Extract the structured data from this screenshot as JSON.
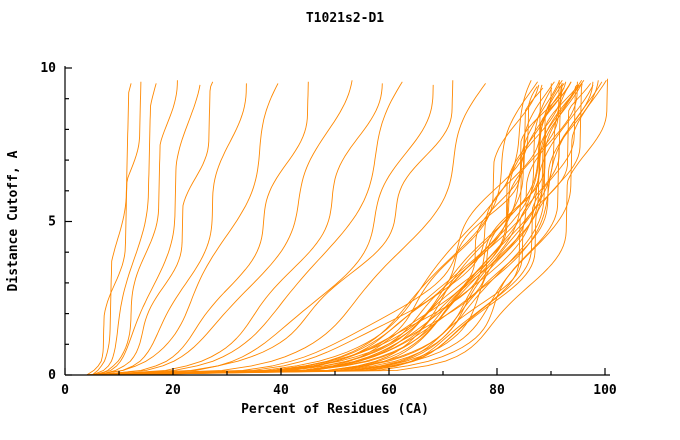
{
  "title": "T1021s2-D1",
  "colors": {
    "curve": "#ff8800",
    "axis": "#000000",
    "background": "#ffffff",
    "text": "#000000"
  },
  "chart_data": {
    "type": "line",
    "title": "T1021s2-D1",
    "xlabel": "Percent of Residues (CA)",
    "ylabel": "Distance Cutoff, A",
    "xlim": [
      0,
      100
    ],
    "ylim": [
      0,
      10
    ],
    "x_ticks": [
      0,
      20,
      40,
      60,
      80,
      100
    ],
    "x_minor_step": 10,
    "y_ticks": [
      0,
      5,
      10
    ],
    "y_minor_step": 1,
    "grid": false,
    "legend": false,
    "curve_color": "#ff8800",
    "curve_params_legend": [
      "x_at_cutoff0",
      "x_at_top",
      "shape_exponent",
      "top_cutoff",
      "wiggle_freq",
      "wiggle_phase"
    ],
    "curves": [
      [
        5,
        12,
        0.5,
        9.5,
        1.3,
        0.5
      ],
      [
        4,
        14,
        0.55,
        9.55,
        1.7,
        1.2
      ],
      [
        5,
        17,
        0.45,
        9.5,
        1.1,
        2.0
      ],
      [
        6,
        20,
        0.5,
        9.6,
        1.5,
        0.3
      ],
      [
        5,
        24,
        0.42,
        9.45,
        1.2,
        2.6
      ],
      [
        6,
        28,
        0.48,
        9.55,
        1.8,
        1.0
      ],
      [
        5,
        33,
        0.4,
        9.5,
        1.4,
        1.9
      ],
      [
        5,
        40,
        0.45,
        9.5,
        1.2,
        0.7
      ],
      [
        6,
        46,
        0.4,
        9.55,
        1.6,
        1.5
      ],
      [
        5,
        52,
        0.38,
        9.6,
        1.3,
        2.2
      ],
      [
        6,
        58,
        0.35,
        9.5,
        1.5,
        0.9
      ],
      [
        5,
        63,
        0.33,
        9.55,
        1.1,
        1.7
      ],
      [
        6,
        68,
        0.3,
        9.45,
        1.4,
        2.4
      ],
      [
        5,
        73,
        0.32,
        9.6,
        1.7,
        0.4
      ],
      [
        6,
        78,
        0.28,
        9.5,
        1.2,
        1.1
      ],
      [
        4,
        86,
        0.2,
        9.45,
        1.5,
        0.2
      ],
      [
        5,
        87,
        0.22,
        9.55,
        1.2,
        1.4
      ],
      [
        4,
        88,
        0.18,
        9.35,
        1.8,
        2.3
      ],
      [
        6,
        88,
        0.24,
        9.6,
        1.1,
        0.8
      ],
      [
        5,
        89,
        0.16,
        9.5,
        1.4,
        1.9
      ],
      [
        4,
        89,
        0.26,
        9.4,
        1.6,
        2.8
      ],
      [
        5,
        90,
        0.19,
        9.55,
        1.3,
        0.5
      ],
      [
        6,
        90,
        0.22,
        9.45,
        1.7,
        1.6
      ],
      [
        4,
        90,
        0.15,
        9.6,
        1.2,
        2.1
      ],
      [
        5,
        91,
        0.21,
        9.5,
        1.5,
        0.9
      ],
      [
        6,
        91,
        0.17,
        9.35,
        1.1,
        1.8
      ],
      [
        4,
        91,
        0.25,
        9.55,
        1.9,
        2.6
      ],
      [
        5,
        92,
        0.14,
        9.5,
        1.3,
        0.3
      ],
      [
        6,
        92,
        0.2,
        9.6,
        1.6,
        1.2
      ],
      [
        4,
        92,
        0.23,
        9.4,
        1.2,
        2.0
      ],
      [
        5,
        92,
        0.18,
        9.55,
        1.8,
        2.9
      ],
      [
        6,
        93,
        0.16,
        9.45,
        1.4,
        0.6
      ],
      [
        4,
        93,
        0.21,
        9.6,
        1.1,
        1.5
      ],
      [
        5,
        93,
        0.13,
        9.5,
        1.7,
        2.4
      ],
      [
        6,
        93,
        0.24,
        9.35,
        1.3,
        0.1
      ],
      [
        4,
        94,
        0.19,
        9.55,
        1.5,
        1.0
      ],
      [
        5,
        94,
        0.15,
        9.45,
        1.2,
        1.9
      ],
      [
        6,
        94,
        0.22,
        9.6,
        1.8,
        2.7
      ],
      [
        4,
        94,
        0.17,
        9.5,
        1.4,
        0.4
      ],
      [
        5,
        95,
        0.2,
        9.55,
        1.1,
        1.3
      ],
      [
        6,
        95,
        0.14,
        9.4,
        1.6,
        2.2
      ],
      [
        4,
        95,
        0.23,
        9.6,
        1.3,
        0.7
      ],
      [
        5,
        96,
        0.16,
        9.5,
        1.9,
        1.6
      ],
      [
        6,
        96,
        0.21,
        9.45,
        1.2,
        2.5
      ],
      [
        4,
        96,
        0.13,
        9.55,
        1.5,
        0.2
      ],
      [
        5,
        97,
        0.18,
        9.6,
        1.4,
        1.1
      ],
      [
        6,
        97,
        0.15,
        9.5,
        1.7,
        2.0
      ],
      [
        4,
        98,
        0.2,
        9.55,
        1.1,
        2.9
      ],
      [
        5,
        99,
        0.16,
        9.6,
        1.3,
        0.8
      ],
      [
        6,
        100,
        0.13,
        9.65,
        1.5,
        1.7
      ]
    ]
  }
}
